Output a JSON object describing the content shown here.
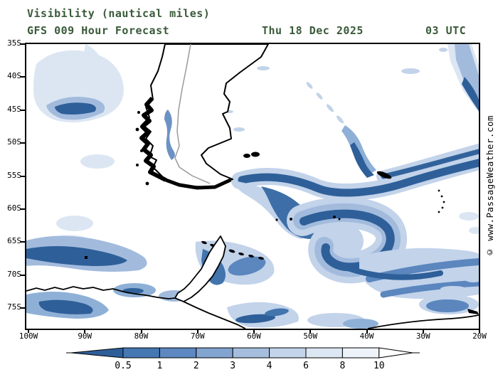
{
  "header": {
    "title": "Visibility (nautical miles)",
    "model_line": "GFS 009 Hour Forecast",
    "valid_date": "Thu 18 Dec 2025",
    "valid_time": "03 UTC",
    "text_color": "#3a5a3a"
  },
  "watermark": "© www.PassageWeather.com",
  "map": {
    "lat_labels": [
      "35S",
      "40S",
      "45S",
      "50S",
      "55S",
      "60S",
      "65S",
      "70S",
      "75S"
    ],
    "lon_labels": [
      "100W",
      "90W",
      "80W",
      "70W",
      "60W",
      "50W",
      "40W",
      "30W",
      "20W"
    ]
  },
  "colorbar": {
    "tick_labels": [
      "0.5",
      "1",
      "2",
      "3",
      "4",
      "6",
      "8",
      "10"
    ],
    "colors": [
      "#2e5f99",
      "#4577b3",
      "#5d88c1",
      "#82a4d0",
      "#a6bede",
      "#c3d4ea",
      "#dde7f3",
      "#eef3fa",
      "#ffffff"
    ],
    "outline_color": "#000000"
  }
}
